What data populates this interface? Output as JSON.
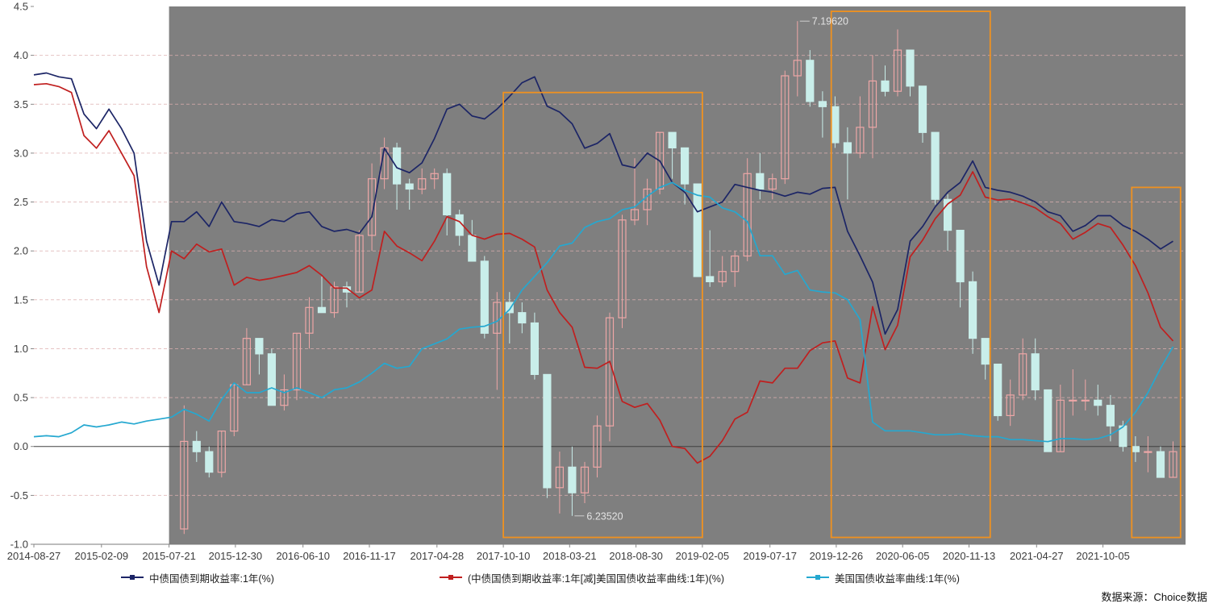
{
  "source_note": "数据来源：Choice数据",
  "chart_data": {
    "type": "line+candlestick",
    "timeline": {
      "start_month": "2014-08",
      "end_month": "2022-03",
      "months": 92
    },
    "y_axis": {
      "min": -1.0,
      "max": 4.5,
      "tick_values": [
        4.5,
        4.0,
        3.5,
        3.0,
        2.5,
        2.0,
        1.5,
        1.0,
        0.5,
        0.0,
        -0.5,
        -1.0
      ],
      "tick_labels": [
        "4.5",
        "4.0",
        "3.5",
        "3.0",
        "2.5",
        "2.0",
        "1.5",
        "1.0",
        "0.5",
        "0.0",
        "-0.5",
        "-1.0"
      ]
    },
    "x_axis": {
      "tick_labels": [
        "2014-08-27",
        "2015-02-09",
        "2015-07-21",
        "2015-12-30",
        "2016-06-10",
        "2016-11-17",
        "2017-04-28",
        "2017-10-10",
        "2018-03-21",
        "2018-08-30",
        "2019-02-05",
        "2019-07-17",
        "2019-12-26",
        "2020-06-05",
        "2020-11-13",
        "2021-04-27",
        "2021-10-05"
      ],
      "tick_month_positions": [
        0,
        5.4,
        10.8,
        16.1,
        21.5,
        26.8,
        32.2,
        37.5,
        42.8,
        48.1,
        53.4,
        58.8,
        64.1,
        69.4,
        74.7,
        80.1,
        85.4
      ]
    },
    "grid": {
      "dashed_values": [
        4.0,
        3.5,
        3.0,
        2.5,
        2.0,
        1.5,
        1.0,
        0.5,
        -0.5
      ],
      "color": "#ddafaf",
      "zero_line_color": "#404040",
      "axis_line_color": "#7a7a7a"
    },
    "plot_background": {
      "left_color": "#ffffff",
      "shaded_from_month": 10.8,
      "shaded_color": "#7f7f7f"
    },
    "series": [
      {
        "name": "中债国债到期收益率:1年(%)",
        "color": "#1c2566",
        "values": [
          3.8,
          3.82,
          3.78,
          3.76,
          3.4,
          3.25,
          3.45,
          3.25,
          3.0,
          2.1,
          1.65,
          2.3,
          2.3,
          2.4,
          2.25,
          2.5,
          2.3,
          2.28,
          2.25,
          2.32,
          2.3,
          2.38,
          2.4,
          2.25,
          2.2,
          2.22,
          2.18,
          2.35,
          3.05,
          2.85,
          2.8,
          2.9,
          3.15,
          3.45,
          3.5,
          3.38,
          3.35,
          3.45,
          3.58,
          3.72,
          3.78,
          3.48,
          3.42,
          3.3,
          3.05,
          3.1,
          3.2,
          2.88,
          2.85,
          3.0,
          2.92,
          2.7,
          2.6,
          2.4,
          2.45,
          2.5,
          2.68,
          2.65,
          2.62,
          2.6,
          2.56,
          2.6,
          2.58,
          2.64,
          2.65,
          2.2,
          1.95,
          1.68,
          1.15,
          1.4,
          2.1,
          2.25,
          2.45,
          2.6,
          2.7,
          2.92,
          2.65,
          2.62,
          2.6,
          2.56,
          2.5,
          2.4,
          2.36,
          2.2,
          2.26,
          2.36,
          2.36,
          2.26,
          2.2,
          2.12,
          2.02,
          2.1
        ]
      },
      {
        "name": "(中债国债到期收益率:1年[减]美国国债收益率曲线:1年)(%)",
        "color": "#c01f1f",
        "values": [
          3.7,
          3.71,
          3.68,
          3.62,
          3.18,
          3.05,
          3.23,
          3.0,
          2.77,
          1.84,
          1.37,
          2.0,
          1.92,
          2.07,
          1.99,
          2.02,
          1.65,
          1.73,
          1.7,
          1.72,
          1.75,
          1.78,
          1.85,
          1.75,
          1.62,
          1.62,
          1.52,
          1.6,
          2.2,
          2.05,
          1.98,
          1.9,
          2.1,
          2.35,
          2.3,
          2.16,
          2.12,
          2.17,
          2.18,
          2.12,
          2.04,
          1.6,
          1.37,
          1.22,
          0.81,
          0.8,
          0.87,
          0.46,
          0.4,
          0.44,
          0.27,
          0.0,
          -0.02,
          -0.17,
          -0.1,
          0.06,
          0.28,
          0.35,
          0.67,
          0.65,
          0.8,
          0.8,
          0.98,
          1.06,
          1.08,
          0.7,
          0.65,
          1.43,
          0.99,
          1.24,
          1.94,
          2.11,
          2.33,
          2.48,
          2.57,
          2.81,
          2.55,
          2.52,
          2.53,
          2.49,
          2.44,
          2.35,
          2.28,
          2.12,
          2.19,
          2.28,
          2.24,
          2.06,
          1.85,
          1.57,
          1.22,
          1.08
        ]
      },
      {
        "name": "美国国债收益率曲线:1年(%)",
        "color": "#25a8d0",
        "values": [
          0.1,
          0.11,
          0.1,
          0.14,
          0.22,
          0.2,
          0.22,
          0.25,
          0.23,
          0.26,
          0.28,
          0.3,
          0.38,
          0.33,
          0.26,
          0.48,
          0.65,
          0.55,
          0.55,
          0.6,
          0.55,
          0.6,
          0.55,
          0.5,
          0.58,
          0.6,
          0.66,
          0.75,
          0.85,
          0.8,
          0.82,
          1.0,
          1.05,
          1.1,
          1.2,
          1.22,
          1.23,
          1.28,
          1.4,
          1.6,
          1.74,
          1.88,
          2.05,
          2.08,
          2.24,
          2.3,
          2.33,
          2.42,
          2.45,
          2.56,
          2.65,
          2.7,
          2.62,
          2.57,
          2.55,
          2.44,
          2.4,
          2.3,
          1.95,
          1.95,
          1.76,
          1.8,
          1.6,
          1.58,
          1.57,
          1.5,
          1.3,
          0.25,
          0.16,
          0.16,
          0.16,
          0.14,
          0.12,
          0.12,
          0.13,
          0.11,
          0.1,
          0.1,
          0.07,
          0.07,
          0.06,
          0.05,
          0.08,
          0.08,
          0.07,
          0.08,
          0.12,
          0.2,
          0.35,
          0.55,
          0.8,
          1.02
        ]
      }
    ],
    "candlestick": {
      "up_color": "#eea7a7",
      "down_color": "#c9eeea",
      "scale_anchor": {
        "rate_high": 7.1962,
        "axis_value_high": 4.35,
        "rate_low": 6.2352,
        "axis_value_low": -0.71
      },
      "ohlc_monthly": [
        [
          12,
          6.21,
          6.45,
          6.2,
          6.38
        ],
        [
          13,
          6.38,
          6.4,
          6.34,
          6.36
        ],
        [
          14,
          6.36,
          6.37,
          6.31,
          6.32
        ],
        [
          15,
          6.32,
          6.4,
          6.31,
          6.4
        ],
        [
          16,
          6.4,
          6.49,
          6.39,
          6.49
        ],
        [
          17,
          6.49,
          6.6,
          6.49,
          6.58
        ],
        [
          18,
          6.58,
          6.58,
          6.51,
          6.55
        ],
        [
          19,
          6.55,
          6.56,
          6.45,
          6.45
        ],
        [
          20,
          6.45,
          6.51,
          6.44,
          6.48
        ],
        [
          21,
          6.48,
          6.59,
          6.46,
          6.59
        ],
        [
          22,
          6.59,
          6.66,
          6.56,
          6.64
        ],
        [
          23,
          6.64,
          6.7,
          6.63,
          6.63
        ],
        [
          24,
          6.63,
          6.69,
          6.62,
          6.68
        ],
        [
          25,
          6.68,
          6.69,
          6.64,
          6.67
        ],
        [
          26,
          6.67,
          6.79,
          6.67,
          6.78
        ],
        [
          27,
          6.78,
          6.92,
          6.75,
          6.89
        ],
        [
          28,
          6.89,
          6.97,
          6.87,
          6.95
        ],
        [
          29,
          6.95,
          6.96,
          6.83,
          6.88
        ],
        [
          30,
          6.88,
          6.89,
          6.83,
          6.87
        ],
        [
          31,
          6.87,
          6.91,
          6.86,
          6.89
        ],
        [
          32,
          6.89,
          6.91,
          6.87,
          6.9
        ],
        [
          33,
          6.9,
          6.91,
          6.78,
          6.82
        ],
        [
          34,
          6.82,
          6.83,
          6.76,
          6.78
        ],
        [
          35,
          6.78,
          6.81,
          6.73,
          6.73
        ],
        [
          36,
          6.73,
          6.74,
          6.58,
          6.59
        ],
        [
          37,
          6.59,
          6.67,
          6.48,
          6.65
        ],
        [
          38,
          6.65,
          6.67,
          6.57,
          6.63
        ],
        [
          39,
          6.63,
          6.65,
          6.59,
          6.61
        ],
        [
          40,
          6.61,
          6.63,
          6.5,
          6.51
        ],
        [
          41,
          6.51,
          6.51,
          6.27,
          6.29
        ],
        [
          42,
          6.29,
          6.36,
          6.24,
          6.33
        ],
        [
          43,
          6.33,
          6.37,
          6.2352,
          6.28
        ],
        [
          44,
          6.28,
          6.34,
          6.26,
          6.33
        ],
        [
          45,
          6.33,
          6.43,
          6.31,
          6.41
        ],
        [
          46,
          6.41,
          6.63,
          6.38,
          6.62
        ],
        [
          47,
          6.62,
          6.82,
          6.6,
          6.81
        ],
        [
          48,
          6.81,
          6.93,
          6.8,
          6.83
        ],
        [
          49,
          6.83,
          6.89,
          6.8,
          6.87
        ],
        [
          50,
          6.87,
          6.98,
          6.86,
          6.98
        ],
        [
          51,
          6.98,
          6.98,
          6.89,
          6.95
        ],
        [
          52,
          6.95,
          6.95,
          6.84,
          6.88
        ],
        [
          53,
          6.88,
          6.88,
          6.7,
          6.7
        ],
        [
          54,
          6.7,
          6.79,
          6.68,
          6.69
        ],
        [
          55,
          6.69,
          6.74,
          6.68,
          6.71
        ],
        [
          56,
          6.71,
          6.75,
          6.68,
          6.74
        ],
        [
          57,
          6.74,
          6.93,
          6.73,
          6.9
        ],
        [
          58,
          6.9,
          6.94,
          6.85,
          6.87
        ],
        [
          59,
          6.87,
          6.9,
          6.85,
          6.89
        ],
        [
          60,
          6.89,
          7.1,
          6.88,
          7.09
        ],
        [
          61,
          7.09,
          7.1962,
          7.05,
          7.12
        ],
        [
          62,
          7.12,
          7.14,
          7.03,
          7.04
        ],
        [
          63,
          7.04,
          7.06,
          6.97,
          7.03
        ],
        [
          64,
          7.03,
          7.05,
          6.95,
          6.96
        ],
        [
          65,
          6.96,
          6.99,
          6.85,
          6.94
        ],
        [
          66,
          6.94,
          7.05,
          6.93,
          6.99
        ],
        [
          67,
          6.99,
          7.13,
          6.93,
          7.08
        ],
        [
          68,
          7.08,
          7.11,
          7.05,
          7.06
        ],
        [
          69,
          7.06,
          7.18,
          7.05,
          7.14
        ],
        [
          70,
          7.14,
          7.14,
          7.05,
          7.07
        ],
        [
          71,
          7.07,
          7.07,
          6.96,
          6.98
        ],
        [
          72,
          6.98,
          6.98,
          6.84,
          6.85
        ],
        [
          73,
          6.85,
          6.86,
          6.75,
          6.79
        ],
        [
          74,
          6.79,
          6.79,
          6.64,
          6.69
        ],
        [
          75,
          6.69,
          6.71,
          6.55,
          6.58
        ],
        [
          76,
          6.58,
          6.58,
          6.5,
          6.53
        ],
        [
          77,
          6.53,
          6.53,
          6.42,
          6.43
        ],
        [
          78,
          6.43,
          6.5,
          6.41,
          6.47
        ],
        [
          79,
          6.47,
          6.58,
          6.46,
          6.55
        ],
        [
          80,
          6.55,
          6.58,
          6.46,
          6.48
        ],
        [
          81,
          6.48,
          6.48,
          6.36,
          6.36
        ],
        [
          82,
          6.36,
          6.49,
          6.36,
          6.46
        ],
        [
          83,
          6.46,
          6.52,
          6.43,
          6.46
        ],
        [
          84,
          6.46,
          6.5,
          6.44,
          6.46
        ],
        [
          85,
          6.46,
          6.49,
          6.43,
          6.45
        ],
        [
          86,
          6.45,
          6.47,
          6.38,
          6.41
        ],
        [
          87,
          6.41,
          6.42,
          6.36,
          6.37
        ],
        [
          88,
          6.37,
          6.39,
          6.34,
          6.36
        ],
        [
          89,
          6.36,
          6.39,
          6.32,
          6.36
        ],
        [
          90,
          6.36,
          6.37,
          6.31,
          6.31
        ],
        [
          91,
          6.31,
          6.38,
          6.31,
          6.36
        ]
      ]
    },
    "annotations": [
      {
        "text": "7.19620",
        "candle_month_index": 61,
        "attach": "high"
      },
      {
        "text": "6.23520",
        "candle_month_index": 43,
        "attach": "low"
      }
    ],
    "highlight_boxes": {
      "color": "#ef9120",
      "boxes": [
        {
          "from_month": 37.5,
          "to_month": 53.4,
          "top": 3.62,
          "bottom": -0.93
        },
        {
          "from_month": 63.7,
          "to_month": 76.4,
          "top": 4.45,
          "bottom": -0.93
        },
        {
          "from_month": 87.7,
          "to_month": 91.6,
          "top": 2.65,
          "bottom": -0.93
        }
      ]
    },
    "legend_position": "bottom"
  }
}
